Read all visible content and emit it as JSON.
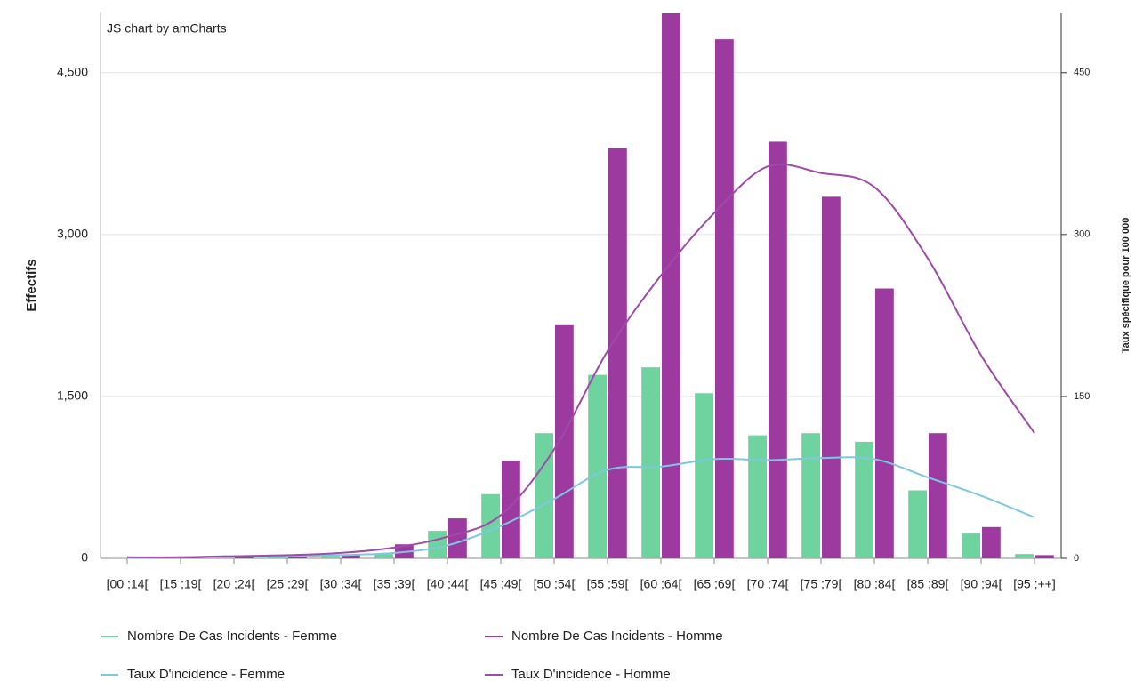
{
  "chart_data": {
    "type": "bar-line",
    "credit": "JS chart by amCharts",
    "y_label": "Effectifs",
    "y2_label": "Taux spécifique pour 100 000",
    "categories": [
      "[00 ;14[",
      "[15 ;19[",
      "[20 ;24[",
      "[25 ;29[",
      "[30 ;34[",
      "[35 ;39[",
      "[40 ;44[",
      "[45 ;49[",
      "[50 ;54[",
      "[55 ;59[",
      "[60 ;64[",
      "[65 ;69[",
      "[70 ;74[",
      "[75 ;79[",
      "[80 ;84[",
      "[85 ;89[",
      "[90 ;94[",
      "[95 ;++]"
    ],
    "series": [
      {
        "name": "Nombre De Cas Incidents - Femme",
        "type": "bar",
        "color": "#6fd3a0",
        "values": [
          5,
          5,
          10,
          15,
          20,
          40,
          255,
          595,
          1160,
          1700,
          1770,
          1530,
          1140,
          1160,
          1080,
          630,
          230,
          40
        ]
      },
      {
        "name": "Nombre De Cas Incidents - Homme",
        "type": "bar",
        "color": "#9c3aa0",
        "values": [
          5,
          5,
          10,
          20,
          30,
          130,
          370,
          905,
          2160,
          3800,
          5050,
          4810,
          3860,
          3350,
          2500,
          1160,
          290,
          30
        ]
      },
      {
        "name": "Taux D'incidence - Femme",
        "type": "line",
        "axis": "y2",
        "color": "#7cc8e0",
        "values": [
          0.5,
          1,
          2,
          2,
          3,
          5,
          12,
          30,
          55,
          82,
          85,
          92,
          91,
          93,
          92,
          75,
          58,
          38
        ]
      },
      {
        "name": "Taux D'incidence - Homme",
        "type": "line",
        "axis": "y2",
        "color": "#a04aaa",
        "values": [
          1,
          1,
          2,
          3,
          5,
          10,
          20,
          40,
          101,
          192,
          262,
          320,
          363,
          357,
          344,
          278,
          188,
          116
        ]
      }
    ],
    "ylim": [
      0,
      5050
    ],
    "yticks": [
      0,
      {
        "value": 1500,
        "label": "1,500"
      },
      {
        "value": 3000,
        "label": "3,000"
      },
      {
        "value": 4500,
        "label": "4,500"
      }
    ],
    "y2lim": [
      0,
      505
    ],
    "y2ticks": [
      0,
      150,
      300,
      450
    ],
    "grid": true
  }
}
